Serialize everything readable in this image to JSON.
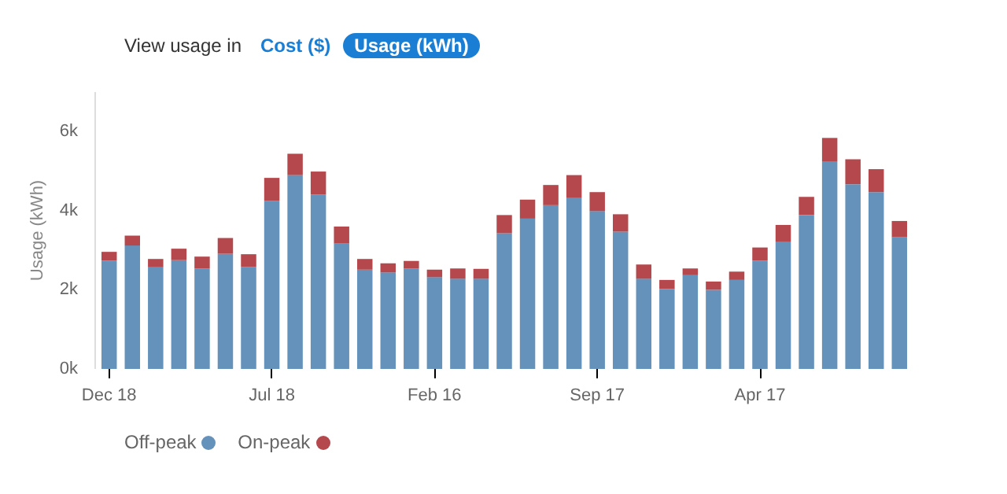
{
  "chart_data": {
    "type": "bar",
    "stacked": true,
    "annotations": [
      "View usage in",
      "Cost ($)",
      "Usage (kWh)"
    ],
    "ylabel": "Usage (kWh)",
    "categories": [
      "Dec 18",
      null,
      null,
      null,
      null,
      null,
      null,
      "Jul 18",
      null,
      null,
      null,
      null,
      null,
      null,
      "Feb 16",
      null,
      null,
      null,
      null,
      null,
      null,
      "Sep 17",
      null,
      null,
      null,
      null,
      null,
      null,
      "Apr 17",
      null,
      null,
      null,
      null,
      null,
      null
    ],
    "series": [
      {
        "name": "Off-peak",
        "color": "#6592bb",
        "values": [
          2740,
          3120,
          2570,
          2750,
          2540,
          2910,
          2580,
          4250,
          4900,
          4410,
          3170,
          2510,
          2440,
          2540,
          2320,
          2280,
          2280,
          3430,
          3800,
          4140,
          4320,
          3990,
          3470,
          2280,
          2020,
          2370,
          2000,
          2250,
          2740,
          3220,
          3890,
          5250,
          4670,
          4470,
          3330
        ]
      },
      {
        "name": "On-peak",
        "color": "#b5484d",
        "values": [
          220,
          250,
          210,
          290,
          300,
          400,
          320,
          580,
          540,
          580,
          430,
          270,
          230,
          190,
          190,
          260,
          250,
          460,
          480,
          510,
          580,
          480,
          440,
          360,
          230,
          170,
          210,
          210,
          330,
          420,
          460,
          590,
          630,
          580,
          410
        ]
      }
    ],
    "ylim": [
      0,
      7000
    ],
    "yticks": [
      {
        "value": 0,
        "label": "0k"
      },
      {
        "value": 2000,
        "label": "2k"
      },
      {
        "value": 4000,
        "label": "4k"
      },
      {
        "value": 6000,
        "label": "6k"
      }
    ],
    "grid": false,
    "legend": "bottom left",
    "marker": "circle"
  }
}
